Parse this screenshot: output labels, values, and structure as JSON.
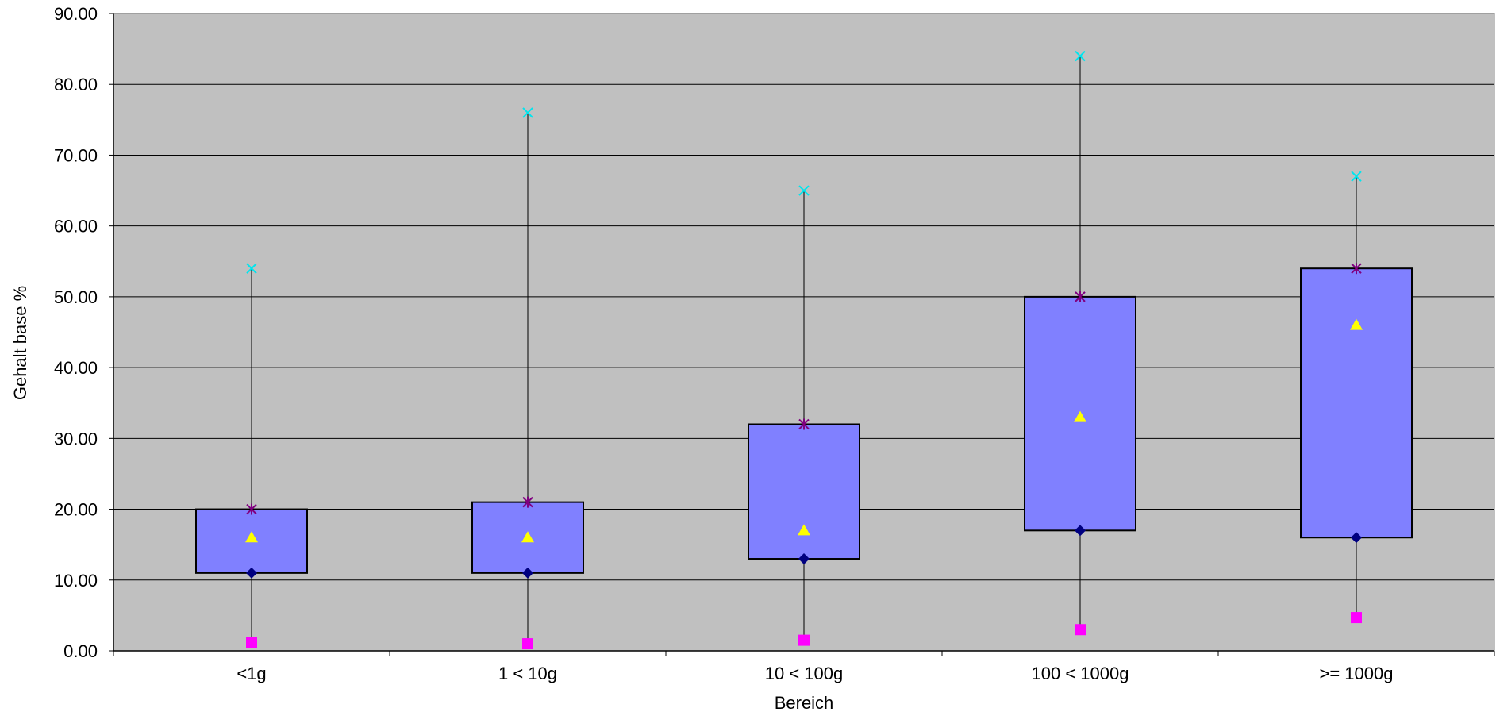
{
  "chart_data": {
    "type": "boxplot",
    "xlabel": "Bereich",
    "ylabel": "Gehalt base %",
    "ylim": [
      0,
      90
    ],
    "yticks": [
      "0.00",
      "10.00",
      "20.00",
      "30.00",
      "40.00",
      "50.00",
      "60.00",
      "70.00",
      "80.00",
      "90.00"
    ],
    "grid": true,
    "categories": [
      "<1g",
      "1 < 10g",
      "10 < 100g",
      "100 < 1000g",
      ">= 1000g"
    ],
    "series": [
      {
        "marker": "square",
        "color": "#ff00ff",
        "values": [
          1.2,
          1.0,
          1.5,
          3.0,
          4.7
        ]
      },
      {
        "marker": "diamond",
        "color": "#000080",
        "values": [
          11,
          11,
          13,
          17,
          16
        ]
      },
      {
        "marker": "triangle",
        "color": "#ffff00",
        "values": [
          16,
          16,
          17,
          33,
          46
        ]
      },
      {
        "marker": "star",
        "color": "#800080",
        "values": [
          20,
          21,
          32,
          50,
          54
        ]
      },
      {
        "marker": "x",
        "color": "#00e5ee",
        "values": [
          54,
          76,
          65,
          84,
          67
        ]
      }
    ],
    "colors": {
      "plot_background": "#c0c0c0",
      "box_fill": "#8080ff",
      "box_stroke": "#000000",
      "whisker": "#000000",
      "gridline": "#000000"
    }
  }
}
